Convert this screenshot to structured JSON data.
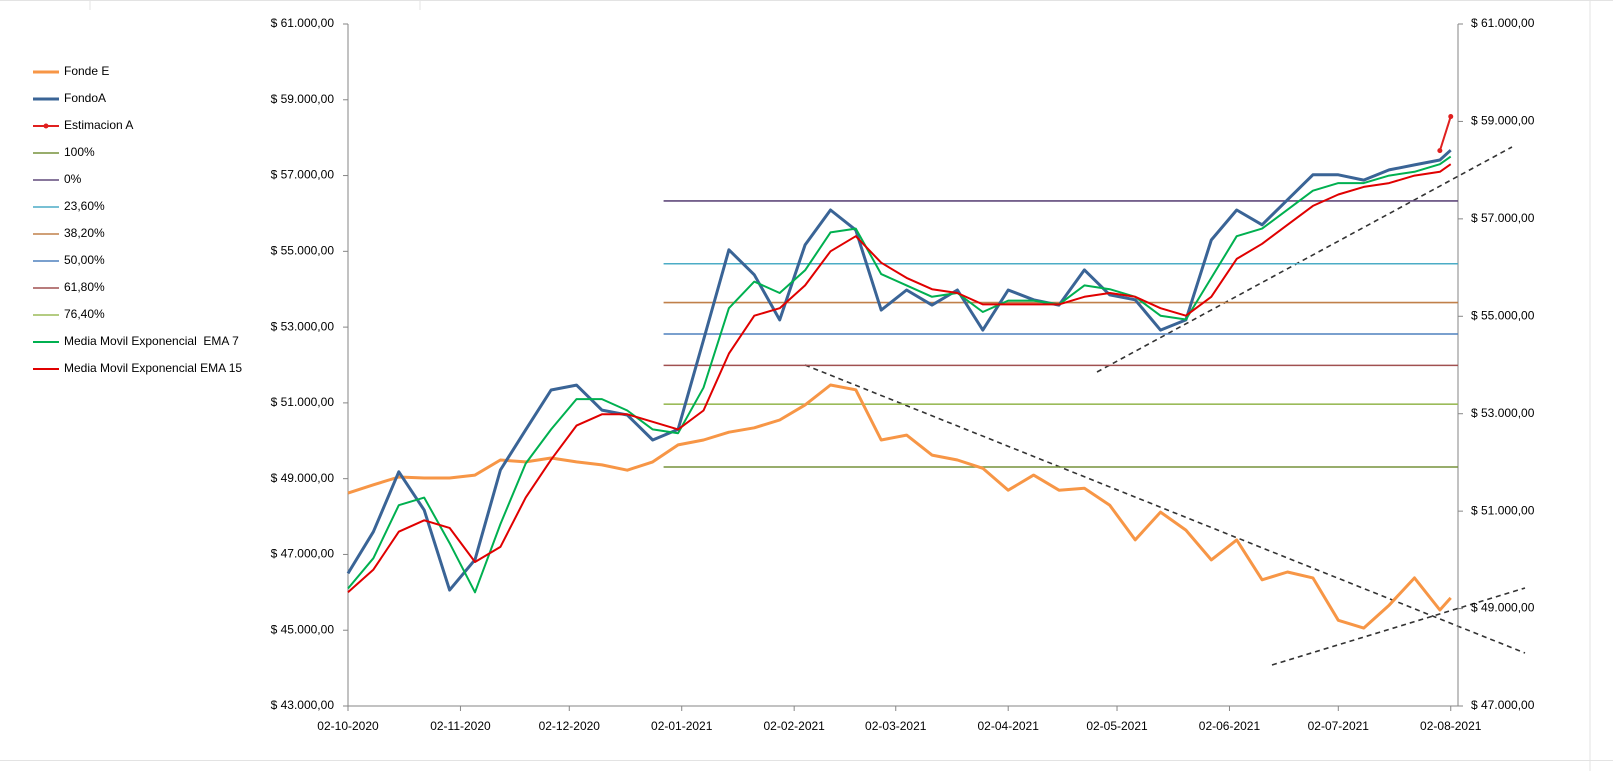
{
  "chart_data": {
    "type": "line",
    "x": [
      "02-10-2020",
      "09-10-2020",
      "16-10-2020",
      "23-10-2020",
      "30-10-2020",
      "06-11-2020",
      "13-11-2020",
      "20-11-2020",
      "27-11-2020",
      "04-12-2020",
      "11-12-2020",
      "18-12-2020",
      "25-12-2020",
      "01-01-2021",
      "08-01-2021",
      "15-01-2021",
      "22-01-2021",
      "29-01-2021",
      "05-02-2021",
      "12-02-2021",
      "19-02-2021",
      "26-02-2021",
      "05-03-2021",
      "12-03-2021",
      "19-03-2021",
      "26-03-2021",
      "02-04-2021",
      "09-04-2021",
      "16-04-2021",
      "23-04-2021",
      "30-04-2021",
      "07-05-2021",
      "14-05-2021",
      "21-05-2021",
      "28-05-2021",
      "04-06-2021",
      "11-06-2021",
      "18-06-2021",
      "25-06-2021",
      "02-07-2021",
      "09-07-2021",
      "16-07-2021",
      "23-07-2021",
      "30-07-2021",
      "02-08-2021"
    ],
    "xlim": [
      "02-10-2020",
      "04-08-2021"
    ],
    "xticks": [
      "02-10-2020",
      "02-11-2020",
      "02-12-2020",
      "02-01-2021",
      "02-02-2021",
      "02-03-2021",
      "02-04-2021",
      "02-05-2021",
      "02-06-2021",
      "02-07-2021",
      "02-08-2021"
    ],
    "ylim": [
      43000,
      61000
    ],
    "yticks": [
      {
        "value": 43000,
        "label": "$ 43.000,00"
      },
      {
        "value": 45000,
        "label": "$ 45.000,00"
      },
      {
        "value": 47000,
        "label": "$ 47.000,00"
      },
      {
        "value": 49000,
        "label": "$ 49.000,00"
      },
      {
        "value": 51000,
        "label": "$ 51.000,00"
      },
      {
        "value": 53000,
        "label": "$ 53.000,00"
      },
      {
        "value": 55000,
        "label": "$ 55.000,00"
      },
      {
        "value": 57000,
        "label": "$ 57.000,00"
      },
      {
        "value": 59000,
        "label": "$ 59.000,00"
      },
      {
        "value": 61000,
        "label": "$ 61.000,00"
      }
    ],
    "y2lim": [
      47000,
      61000
    ],
    "y2ticks": [
      {
        "value": 47000,
        "label": "$ 47.000,00"
      },
      {
        "value": 49000,
        "label": "$ 49.000,00"
      },
      {
        "value": 51000,
        "label": "$ 51.000,00"
      },
      {
        "value": 53000,
        "label": "$ 53.000,00"
      },
      {
        "value": 55000,
        "label": "$ 55.000,00"
      },
      {
        "value": 57000,
        "label": "$ 57.000,00"
      },
      {
        "value": 59000,
        "label": "$ 59.000,00"
      },
      {
        "value": 61000,
        "label": "$ 61.000,00"
      }
    ],
    "series": [
      {
        "name": "Fonde E",
        "color": "#f79646",
        "axis": "y2",
        "width": 3,
        "values": [
          51370,
          51540,
          51700,
          51680,
          51680,
          51740,
          52050,
          52010,
          52090,
          52010,
          51950,
          51840,
          52010,
          52360,
          52460,
          52620,
          52710,
          52870,
          53180,
          53590,
          53490,
          52460,
          52560,
          52150,
          52050,
          51880,
          51430,
          51740,
          51430,
          51470,
          51120,
          50410,
          50980,
          50610,
          50000,
          50410,
          49590,
          49750,
          49630,
          48760,
          48600,
          49070,
          49630,
          48970,
          49220
        ]
      },
      {
        "name": "FondoA",
        "color": "#3a6496",
        "width": 3,
        "values": [
          46500,
          47600,
          49180,
          48170,
          46060,
          46860,
          49230,
          50290,
          51340,
          51470,
          50810,
          50680,
          50020,
          50300,
          52660,
          55040,
          54380,
          53190,
          55170,
          56090,
          55560,
          53450,
          53980,
          53580,
          53980,
          52920,
          53980,
          53720,
          53580,
          54510,
          53850,
          53720,
          52920,
          53190,
          55300,
          56090,
          55700,
          56360,
          57020,
          57020,
          56880,
          57150,
          57280,
          57410,
          57670
        ]
      },
      {
        "name": "Estimacion A",
        "color": "#e0201f",
        "axis": "y2",
        "width": 2,
        "markers": true,
        "values": [
          null,
          null,
          null,
          null,
          null,
          null,
          null,
          null,
          null,
          null,
          null,
          null,
          null,
          null,
          null,
          null,
          null,
          null,
          null,
          null,
          null,
          null,
          null,
          null,
          null,
          null,
          null,
          null,
          null,
          null,
          null,
          null,
          null,
          null,
          null,
          null,
          null,
          null,
          null,
          null,
          null,
          null,
          null,
          58400,
          59100
        ]
      },
      {
        "name": "Media Movil Exponencial  EMA 7",
        "color": "#00b050",
        "width": 2,
        "values": [
          46100,
          46900,
          48300,
          48500,
          47300,
          46000,
          47800,
          49400,
          50300,
          51100,
          51100,
          50800,
          50300,
          50200,
          51400,
          53500,
          54200,
          53900,
          54500,
          55500,
          55600,
          54400,
          54100,
          53800,
          53900,
          53400,
          53700,
          53700,
          53600,
          54100,
          54000,
          53800,
          53300,
          53200,
          54300,
          55400,
          55600,
          56100,
          56600,
          56800,
          56800,
          57000,
          57100,
          57300,
          57500
        ]
      },
      {
        "name": "Media Movil Exponencial EMA 15",
        "color": "#e00000",
        "width": 2,
        "values": [
          46000,
          46600,
          47600,
          47900,
          47700,
          46800,
          47200,
          48500,
          49500,
          50400,
          50700,
          50700,
          50500,
          50300,
          50800,
          52300,
          53300,
          53500,
          54100,
          55000,
          55400,
          54700,
          54300,
          54000,
          53900,
          53600,
          53600,
          53600,
          53600,
          53800,
          53900,
          53800,
          53500,
          53300,
          53800,
          54800,
          55200,
          55700,
          56200,
          56500,
          56700,
          56800,
          57000,
          57100,
          57300
        ]
      }
    ],
    "levels_from": "28-12-2020",
    "levels": [
      {
        "name": "100%",
        "color": "#76923c",
        "value": 49308
      },
      {
        "name": "0%",
        "color": "#604a7b",
        "value": 56329
      },
      {
        "name": "23,60%",
        "color": "#4bacc6",
        "value": 54672
      },
      {
        "name": "38,20%",
        "color": "#c0804a",
        "value": 53647
      },
      {
        "name": "50,00%",
        "color": "#4f81bd",
        "value": 52818
      },
      {
        "name": "61,80%",
        "color": "#a05050",
        "value": 51990
      },
      {
        "name": "76,40%",
        "color": "#9bbb59",
        "value": 50965
      }
    ],
    "legend_order": [
      "series.0",
      "series.1",
      "series.2",
      "levels.0",
      "levels.1",
      "levels.2",
      "levels.3",
      "levels.4",
      "levels.5",
      "levels.6",
      "series.3",
      "series.4"
    ]
  }
}
